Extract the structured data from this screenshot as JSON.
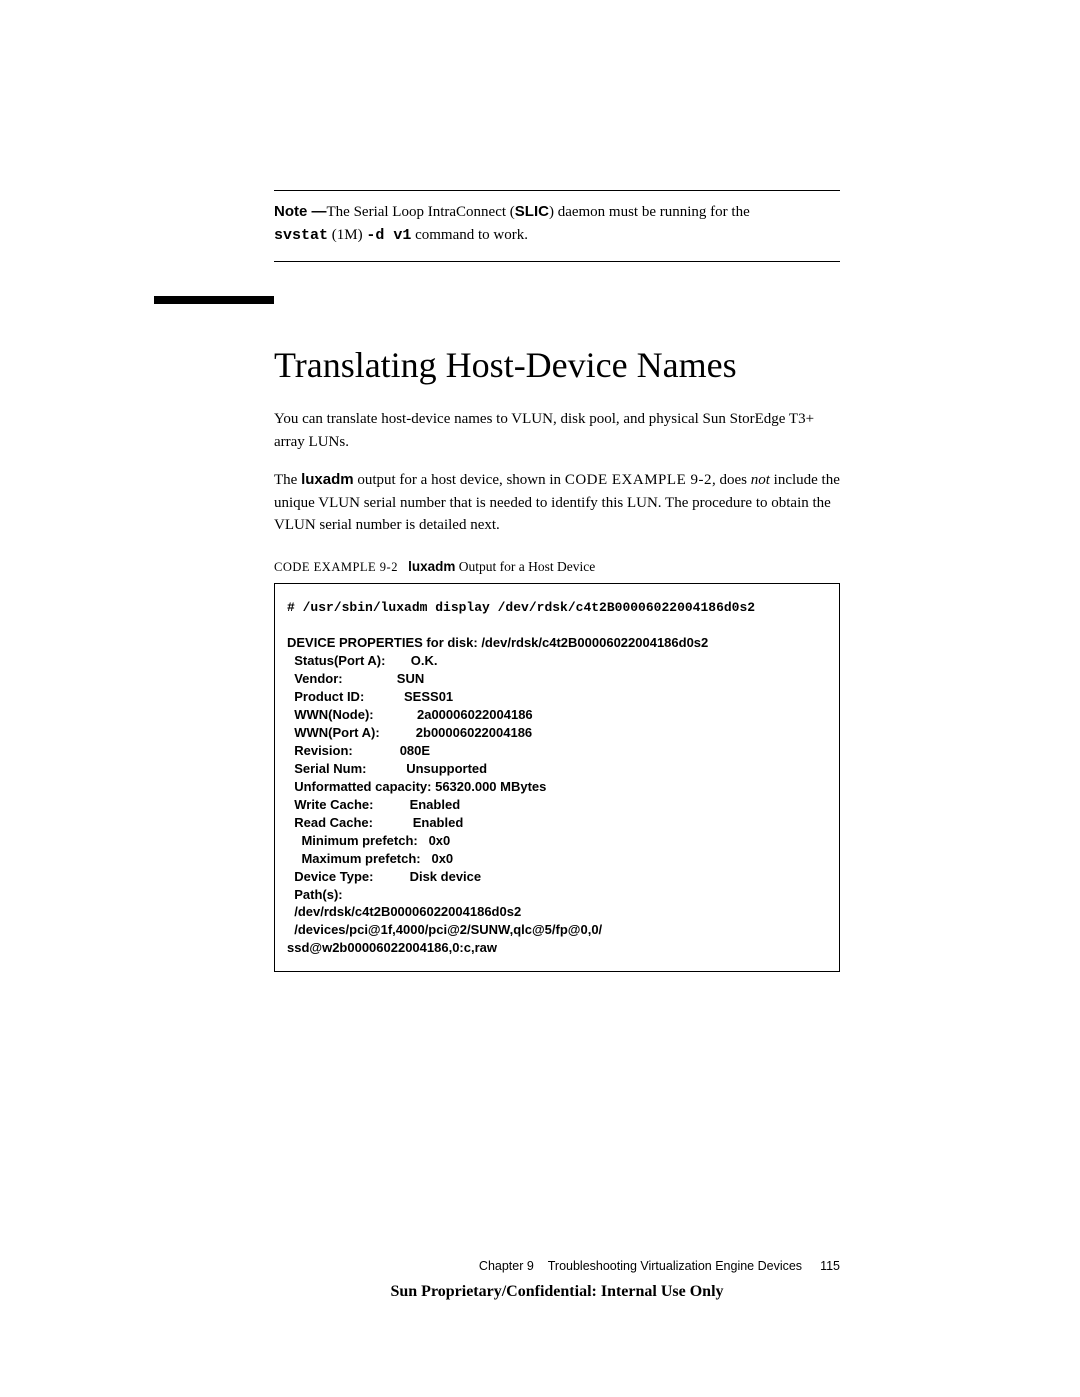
{
  "note": {
    "prefix": "Note —",
    "text1": "The Serial Loop IntraConnect (",
    "slic": "SLIC",
    "text2": ") daemon must be running for the",
    "svstat": "svstat",
    "oneM": " (1M) ",
    "dv1": "-d v1",
    "text3": "  command to work."
  },
  "heading": "Translating Host-Device Names",
  "para1": "You can translate host-device names to VLUN, disk pool, and physical Sun StorEdge T3+ array LUNs.",
  "para2": {
    "a": "The ",
    "luxadm": "luxadm",
    "b": " output for a host device, shown in ",
    "ref": "CODE EXAMPLE 9-2",
    "c": ", does ",
    "not": "not",
    "d": " include the unique VLUN serial number that is needed to identify this LUN. The procedure to obtain the VLUN serial number is detailed next."
  },
  "caption": {
    "ref": "CODE EXAMPLE 9-2",
    "cmd": "luxadm",
    "rest": " Output for a Host Device"
  },
  "code": {
    "cmd": "# /usr/sbin/luxadm display /dev/rdsk/c4t2B00006022004186d0s2",
    "body": "DEVICE PROPERTIES for disk: /dev/rdsk/c4t2B00006022004186d0s2\n  Status(Port A):       O.K.\n  Vendor:               SUN\n  Product ID:           SESS01\n  WWN(Node):            2a00006022004186\n  WWN(Port A):          2b00006022004186\n  Revision:             080E\n  Serial Num:           Unsupported\n  Unformatted capacity: 56320.000 MBytes\n  Write Cache:          Enabled\n  Read Cache:           Enabled\n    Minimum prefetch:   0x0\n    Maximum prefetch:   0x0\n  Device Type:          Disk device\n  Path(s):\n  /dev/rdsk/c4t2B00006022004186d0s2\n  /devices/pci@1f,4000/pci@2/SUNW,qlc@5/fp@0,0/\nssd@w2b00006022004186,0:c,raw"
  },
  "footer": {
    "chapter": "Chapter 9",
    "title": "Troubleshooting Virtualization Engine Devices",
    "page": "115",
    "classification": "Sun Proprietary/Confidential: Internal Use Only"
  }
}
